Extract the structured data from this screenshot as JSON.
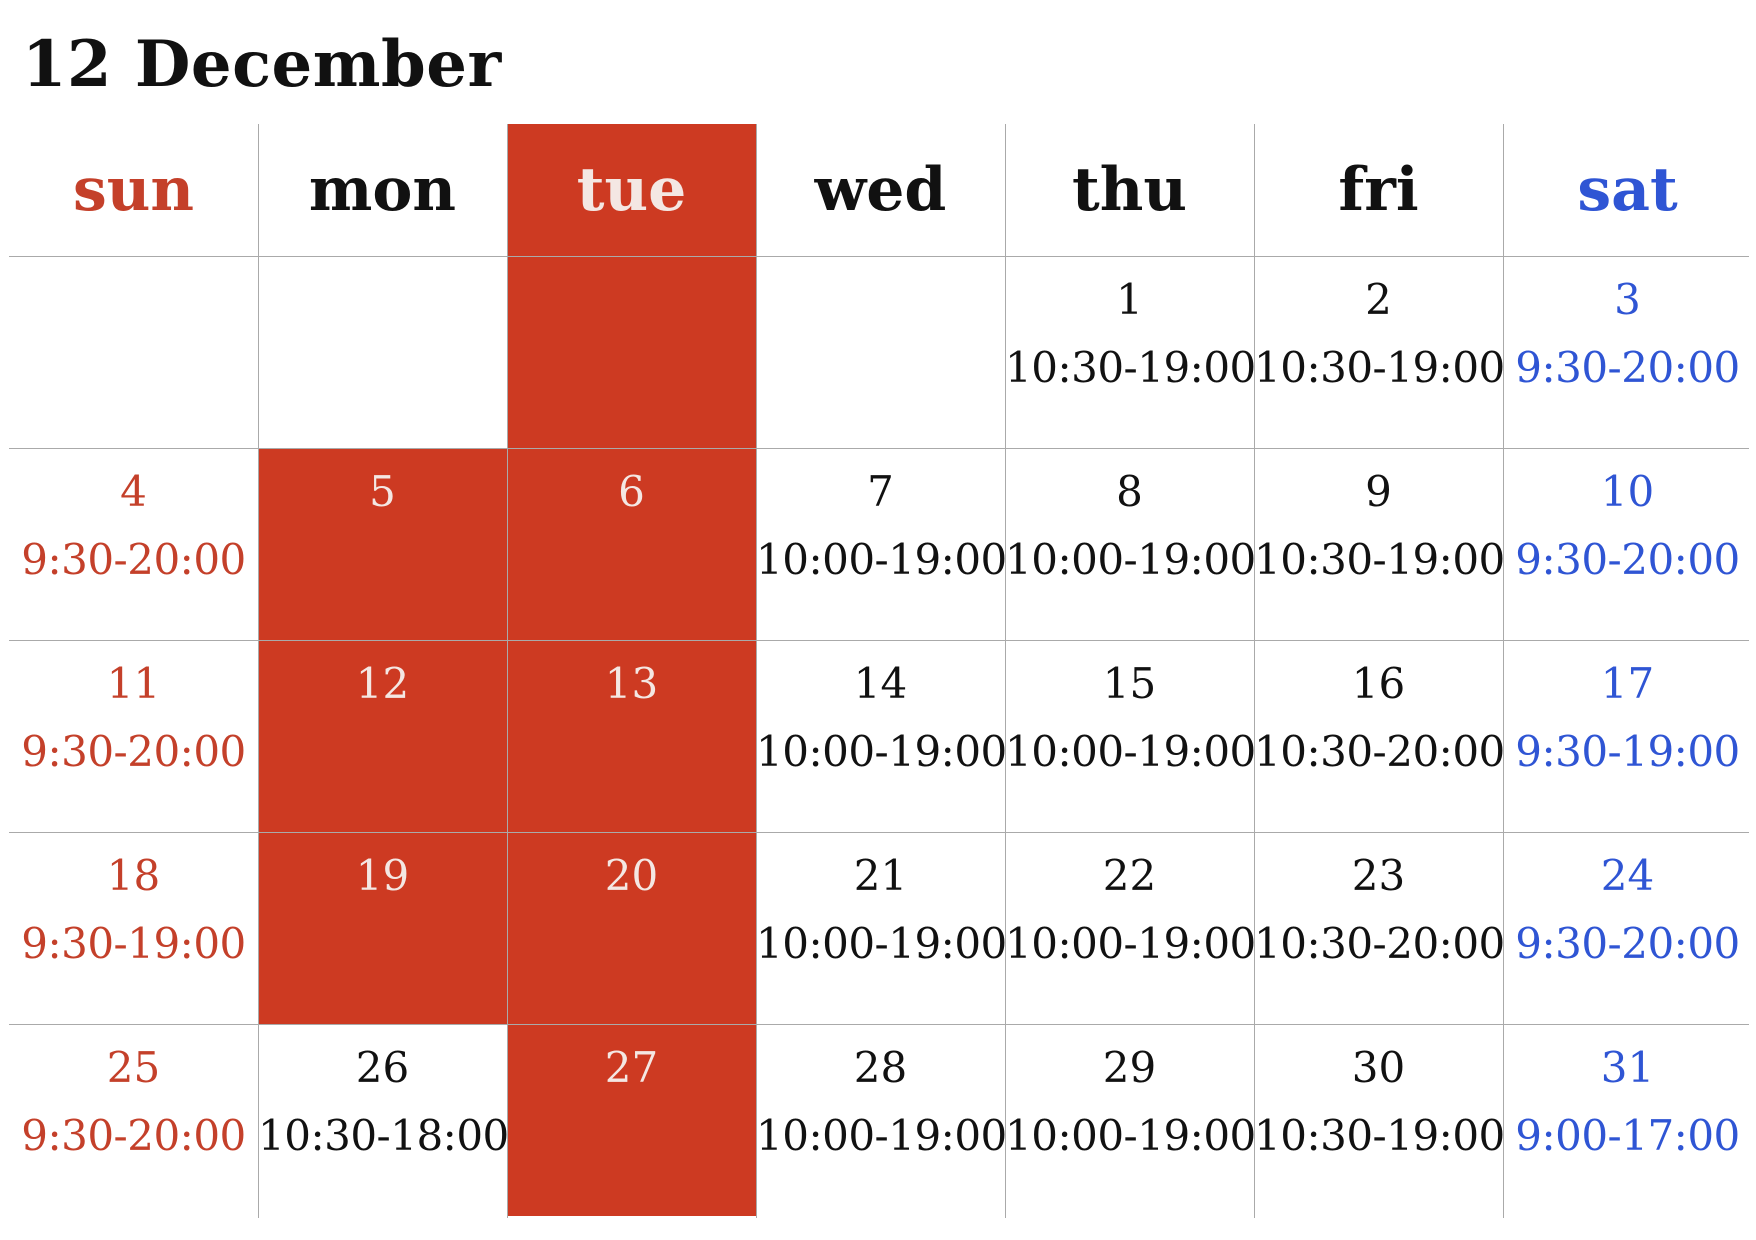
{
  "title": "12 December",
  "colors": {
    "closed_fill": "#cd3a22",
    "sunday": "#c4402a",
    "saturday": "#2f55d4",
    "weekday": "#111111",
    "closed_text": "#f4e7e3"
  },
  "weekdays": [
    "sun",
    "mon",
    "tue",
    "wed",
    "thu",
    "fri",
    "sat"
  ],
  "closed_weekday_header": "tue",
  "weeks": [
    [
      {
        "day": "",
        "hours": "",
        "closed": false
      },
      {
        "day": "",
        "hours": "",
        "closed": false
      },
      {
        "day": "",
        "hours": "",
        "closed": true
      },
      {
        "day": "",
        "hours": "",
        "closed": false
      },
      {
        "day": "1",
        "hours": "10:30-19:00",
        "closed": false
      },
      {
        "day": "2",
        "hours": "10:30-19:00",
        "closed": false
      },
      {
        "day": "3",
        "hours": "9:30-20:00",
        "closed": false
      }
    ],
    [
      {
        "day": "4",
        "hours": "9:30-20:00",
        "closed": false
      },
      {
        "day": "5",
        "hours": "",
        "closed": true
      },
      {
        "day": "6",
        "hours": "",
        "closed": true
      },
      {
        "day": "7",
        "hours": "10:00-19:00",
        "closed": false
      },
      {
        "day": "8",
        "hours": "10:00-19:00",
        "closed": false
      },
      {
        "day": "9",
        "hours": "10:30-19:00",
        "closed": false
      },
      {
        "day": "10",
        "hours": "9:30-20:00",
        "closed": false
      }
    ],
    [
      {
        "day": "11",
        "hours": "9:30-20:00",
        "closed": false
      },
      {
        "day": "12",
        "hours": "",
        "closed": true
      },
      {
        "day": "13",
        "hours": "",
        "closed": true
      },
      {
        "day": "14",
        "hours": "10:00-19:00",
        "closed": false
      },
      {
        "day": "15",
        "hours": "10:00-19:00",
        "closed": false
      },
      {
        "day": "16",
        "hours": "10:30-20:00",
        "closed": false
      },
      {
        "day": "17",
        "hours": "9:30-19:00",
        "closed": false
      }
    ],
    [
      {
        "day": "18",
        "hours": "9:30-19:00",
        "closed": false
      },
      {
        "day": "19",
        "hours": "",
        "closed": true
      },
      {
        "day": "20",
        "hours": "",
        "closed": true
      },
      {
        "day": "21",
        "hours": "10:00-19:00",
        "closed": false
      },
      {
        "day": "22",
        "hours": "10:00-19:00",
        "closed": false
      },
      {
        "day": "23",
        "hours": "10:30-20:00",
        "closed": false
      },
      {
        "day": "24",
        "hours": "9:30-20:00",
        "closed": false
      }
    ],
    [
      {
        "day": "25",
        "hours": "9:30-20:00",
        "closed": false
      },
      {
        "day": "26",
        "hours": "10:30-18:00",
        "closed": false
      },
      {
        "day": "27",
        "hours": "",
        "closed": true
      },
      {
        "day": "28",
        "hours": "10:00-19:00",
        "closed": false
      },
      {
        "day": "29",
        "hours": "10:00-19:00",
        "closed": false
      },
      {
        "day": "30",
        "hours": "10:30-19:00",
        "closed": false
      },
      {
        "day": "31",
        "hours": "9:00-17:00",
        "closed": false
      }
    ]
  ]
}
